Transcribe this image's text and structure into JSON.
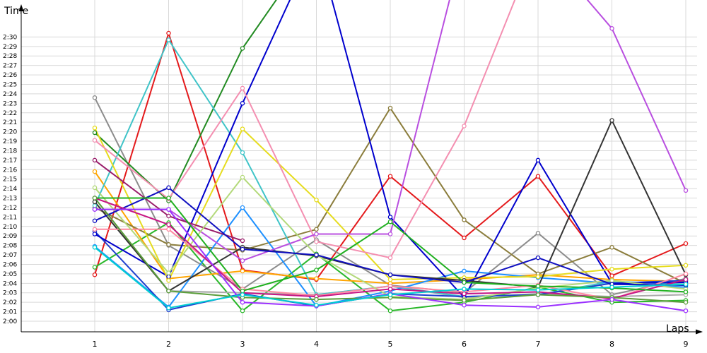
{
  "chart_data": {
    "type": "line",
    "xlabel": "Laps",
    "ylabel": "Time",
    "x": [
      1,
      2,
      3,
      4,
      5,
      6,
      7,
      8,
      9
    ],
    "x_ticks": [
      "1",
      "2",
      "3",
      "4",
      "5",
      "6",
      "7",
      "8",
      "9"
    ],
    "y_ticks": [
      "2:00",
      "2:01",
      "2:02",
      "2:03",
      "2:04",
      "2:05",
      "2:06",
      "2:07",
      "2:08",
      "2:09",
      "2:10",
      "2:11",
      "2:12",
      "2:13",
      "2:14",
      "2:15",
      "2:16",
      "2:17",
      "2:18",
      "2:19",
      "2:20",
      "2:21",
      "2:22",
      "2:23",
      "2:24",
      "2:25",
      "2:26",
      "2:27",
      "2:28",
      "2:29",
      "2:30"
    ],
    "ylim": [
      120,
      152
    ],
    "xlim": [
      1,
      9
    ],
    "y_unit": "seconds",
    "grid": true,
    "series": [
      {
        "color": "#e41a1c",
        "values": [
          124.9,
          150.4,
          125.4,
          124.4,
          135.3,
          128.8,
          135.3,
          124.8,
          128.2
        ]
      },
      {
        "color": "#2ab82a",
        "values": [
          125.7,
          130.4,
          121.1,
          127.1,
          121.1,
          122.0,
          123.6,
          122.0,
          122.2
        ]
      },
      {
        "color": "#8c8c8c",
        "values": [
          143.6,
          128.0,
          123.4,
          128.6,
          123.8,
          123.0,
          129.3,
          122.8,
          124.5
        ]
      },
      {
        "color": "#228b22",
        "values": [
          139.9,
          132.7,
          148.8,
          160.0,
          null,
          null,
          null,
          null,
          null
        ]
      },
      {
        "color": "#ffa500",
        "values": [
          135.8,
          124.5,
          125.3,
          124.5,
          124.0,
          124.4,
          124.9,
          124.4,
          124.2
        ]
      },
      {
        "color": "#aaaaaa",
        "values": [
          133.0,
          123.2,
          123.0,
          122.8,
          123.7,
          122.5,
          122.9,
          122.6,
          122.8
        ]
      },
      {
        "color": "#8b7d3c",
        "values": [
          132.0,
          128.1,
          127.5,
          129.7,
          142.5,
          130.7,
          125.0,
          127.8,
          124.0
        ]
      },
      {
        "color": "#40c4c8",
        "values": [
          132.2,
          149.7,
          137.8,
          122.8,
          123.7,
          122.6,
          122.8,
          124.2,
          123.9
        ]
      },
      {
        "color": "#1e90ff",
        "values": [
          127.9,
          121.5,
          132.0,
          121.6,
          123.2,
          125.3,
          124.6,
          124.0,
          123.6
        ]
      },
      {
        "color": "#1f3fd0",
        "values": [
          129.5,
          121.2,
          122.9,
          121.6,
          122.9,
          122.6,
          122.8,
          124.0,
          124.3
        ]
      },
      {
        "color": "#0000cd",
        "values": [
          129.2,
          124.7,
          143.0,
          160.0,
          131.0,
          122.5,
          137.0,
          124.0,
          124.1
        ]
      },
      {
        "color": "#e6dc1e",
        "values": [
          140.4,
          124.3,
          140.3,
          132.8,
          124.4,
          124.6,
          124.7,
          125.5,
          125.9
        ]
      },
      {
        "color": "#333333",
        "values": [
          132.6,
          123.2,
          127.8,
          126.9,
          124.9,
          124.3,
          123.6,
          141.2,
          124.9
        ]
      },
      {
        "color": "#f48fb1",
        "values": [
          139.1,
          132.9,
          144.6,
          128.4,
          126.7,
          140.6,
          160.0,
          null,
          null
        ]
      },
      {
        "color": "#b94fe0",
        "values": [
          131.8,
          131.8,
          126.4,
          129.2,
          129.2,
          160.0,
          160.0,
          150.9,
          133.8
        ]
      },
      {
        "color": "#9a1e6b",
        "values": [
          137.0,
          131.1,
          128.5,
          null,
          null,
          null,
          null,
          null,
          null
        ]
      },
      {
        "color": "#ff88a0",
        "values": [
          129.7,
          129.7,
          123.4,
          122.7,
          123.7,
          123.1,
          123.8,
          122.3,
          125.0
        ]
      },
      {
        "color": "#b3d97a",
        "values": [
          134.1,
          125.1,
          135.2,
          127.0,
          122.6,
          122.3,
          123.5,
          124.3,
          123.4
        ]
      },
      {
        "color": "#1010c0",
        "values": [
          130.6,
          134.1,
          127.6,
          127.0,
          124.9,
          124.1,
          126.7,
          123.9,
          123.8
        ]
      },
      {
        "color": "#c71585",
        "values": [
          133.0,
          130.2,
          123.0,
          122.6,
          123.4,
          122.9,
          123.1,
          122.4,
          124.4
        ]
      },
      {
        "color": "#20b020",
        "values": [
          133.0,
          133.0,
          123.2,
          125.4,
          130.5,
          124.1,
          123.7,
          123.5,
          123.1
        ]
      },
      {
        "color": "#5a9e3a",
        "values": [
          133.0,
          123.2,
          122.5,
          122.3,
          122.5,
          122.2,
          122.8,
          122.5,
          122.0
        ]
      },
      {
        "color": "#9b30ff",
        "values": [
          131.8,
          131.8,
          122.0,
          121.6,
          122.9,
          121.7,
          121.5,
          122.3,
          121.1
        ]
      },
      {
        "color": "#00ced1",
        "values": [
          127.8,
          121.4,
          122.8,
          121.7,
          122.8,
          123.4,
          123.3,
          123.6,
          123.9
        ]
      }
    ]
  }
}
